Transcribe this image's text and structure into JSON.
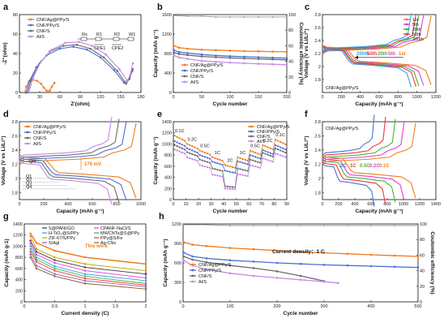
{
  "colors": {
    "ag": "#f07c1c",
    "ppy": "#4a6fd4",
    "cnf": "#6b6b6b",
    "al": "#c48ae8",
    "cyc1": "#f07c1c",
    "cyc5": "#e43bd2",
    "cyc20": "#43b43b",
    "cyc50": "#e83a3a",
    "cyc200": "#3aa0e6",
    "ce": "#8a8a8a"
  },
  "legend_common": [
    "CNF/Ag@PPy/S",
    "CNF/PPy/S",
    "CNF/S",
    "Al/S"
  ],
  "chart_data": [
    {
      "panel": "a",
      "type": "line",
      "xlabel": "Z'(ohm)",
      "ylabel": "-Z''(ohm)",
      "xlim": [
        0,
        180
      ],
      "ylim": [
        0,
        80
      ],
      "xticks": [
        0,
        30,
        60,
        90,
        120,
        150,
        180
      ],
      "yticks": [
        0,
        20,
        40,
        60,
        80
      ],
      "circuit_labels": [
        "Rs",
        "R1",
        "R2",
        "CPE1",
        "CPE2",
        "W1"
      ],
      "series": [
        {
          "name": "CNF/Ag@PPy/S",
          "color": "ag",
          "x": [
            8,
            10,
            14,
            20,
            26,
            32,
            36,
            40,
            43,
            45,
            48,
            52
          ],
          "y": [
            0,
            6,
            11,
            13,
            12,
            9,
            5,
            2,
            1,
            2,
            6,
            10
          ]
        },
        {
          "name": "CNF/PPy/S",
          "color": "ppy",
          "x": [
            10,
            15,
            25,
            40,
            60,
            80,
            100,
            120,
            140,
            155,
            162,
            167
          ],
          "y": [
            0,
            12,
            26,
            38,
            45,
            47,
            44,
            36,
            23,
            10,
            14,
            22
          ]
        },
        {
          "name": "CNF/S",
          "color": "cnf",
          "x": [
            12,
            18,
            30,
            45,
            65,
            85,
            105,
            125,
            145,
            158,
            163,
            168
          ],
          "y": [
            0,
            14,
            30,
            42,
            48,
            49,
            45,
            36,
            22,
            9,
            14,
            24
          ]
        },
        {
          "name": "Al/S",
          "color": "al",
          "x": [
            14,
            20,
            32,
            48,
            68,
            88,
            108,
            128,
            148,
            160,
            164,
            168
          ],
          "y": [
            0,
            15,
            32,
            44,
            51,
            52,
            48,
            39,
            24,
            12,
            18,
            30
          ]
        }
      ]
    },
    {
      "panel": "b",
      "type": "scatter",
      "xlabel": "Cycle number",
      "ylabel": "Capacity (mAh g⁻¹)",
      "ylabel_right": "Coulombic efficiency (%)",
      "xlim": [
        0,
        200
      ],
      "ylim": [
        0,
        1600
      ],
      "ylim_right": [
        0,
        100
      ],
      "xticks": [
        0,
        50,
        100,
        150,
        200
      ],
      "yticks": [
        0,
        400,
        800,
        1200,
        1600
      ],
      "yticks_right": [
        0,
        20,
        40,
        60,
        80,
        100
      ],
      "series": [
        {
          "name": "CNF/Ag@PPy/S",
          "color": "ag",
          "x": [
            1,
            10,
            25,
            50,
            75,
            100,
            125,
            150,
            175,
            200
          ],
          "y": [
            960,
            920,
            900,
            880,
            870,
            860,
            850,
            845,
            840,
            835
          ]
        },
        {
          "name": "CNF/PPy/S",
          "color": "ppy",
          "x": [
            1,
            10,
            25,
            50,
            75,
            100,
            125,
            150,
            175,
            200
          ],
          "y": [
            870,
            830,
            810,
            780,
            760,
            745,
            735,
            725,
            715,
            705
          ]
        },
        {
          "name": "CNF/S",
          "color": "cnf",
          "x": [
            1,
            10,
            25,
            50,
            75,
            100,
            125,
            150,
            175,
            200
          ],
          "y": [
            820,
            790,
            770,
            740,
            725,
            710,
            700,
            690,
            680,
            670
          ]
        },
        {
          "name": "Al/S",
          "color": "al",
          "x": [
            1,
            10,
            25,
            50,
            75,
            100,
            125,
            150,
            175,
            200
          ],
          "y": [
            760,
            720,
            690,
            650,
            630,
            615,
            600,
            590,
            580,
            570
          ]
        },
        {
          "name": "CE",
          "color": "ce",
          "axis": "right",
          "x": [
            1,
            25,
            50,
            75,
            100,
            125,
            150,
            175,
            200
          ],
          "y": [
            99,
            98,
            98,
            97,
            97,
            97,
            97,
            97,
            97
          ]
        }
      ]
    },
    {
      "panel": "c",
      "type": "line",
      "xlabel": "Capacity (mAh g⁻¹)",
      "ylabel": "Voltage (V vs Li/Li⁺)",
      "xlim": [
        0,
        1200
      ],
      "ylim": [
        1.6,
        2.8
      ],
      "xticks": [
        0,
        200,
        400,
        600,
        800,
        1000,
        1200
      ],
      "yticks": [
        1.8,
        2.0,
        2.2,
        2.4,
        2.6,
        2.8
      ],
      "annotation": "CNF/Ag@PPy/S",
      "legend": [
        "1st",
        "5th",
        "20th",
        "50th",
        "200th"
      ],
      "arrow_labels": [
        "200th",
        "50th",
        "20th",
        "5th",
        "1st"
      ],
      "series": [
        {
          "name": "1st",
          "color": "cyc1",
          "cap": 1150
        },
        {
          "name": "5th",
          "color": "cyc5",
          "cap": 1070
        },
        {
          "name": "20th",
          "color": "cyc20",
          "cap": 1020
        },
        {
          "name": "50th",
          "color": "cyc50",
          "cap": 990
        },
        {
          "name": "200th",
          "color": "cyc200",
          "cap": 940
        }
      ]
    },
    {
      "panel": "d",
      "type": "line",
      "xlabel": "Capacity (mAh g⁻¹)",
      "ylabel": "Voltage (V vs Li/Li⁺)",
      "xlim": [
        0,
        1000
      ],
      "ylim": [
        1.7,
        2.8
      ],
      "xticks": [
        0,
        200,
        400,
        600,
        800,
        1000
      ],
      "yticks": [
        1.8,
        2.0,
        2.2,
        2.4,
        2.6,
        2.8
      ],
      "annotation": "170 mV",
      "q_labels": [
        "Q1",
        "Q2",
        "Q3",
        "Q4"
      ],
      "q_h_labels": [
        "QH"
      ],
      "series": [
        {
          "name": "CNF/Ag@PPy/S",
          "color": "ag",
          "cap": 960
        },
        {
          "name": "CNF/PPy/S",
          "color": "ppy",
          "cap": 880
        },
        {
          "name": "CNF/S",
          "color": "cnf",
          "cap": 820
        },
        {
          "name": "Al/S",
          "color": "al",
          "cap": 760
        }
      ]
    },
    {
      "panel": "e",
      "type": "scatter",
      "xlabel": "Cycle number",
      "ylabel": "Capacity (mAh g⁻¹)",
      "xlim": [
        0,
        90
      ],
      "ylim": [
        0,
        1400
      ],
      "xticks": [
        0,
        10,
        20,
        30,
        40,
        50,
        60,
        70,
        80,
        90
      ],
      "yticks": [
        0,
        200,
        400,
        600,
        800,
        1000,
        1200,
        1400
      ],
      "rate_labels": [
        "0.1C",
        "0.2C",
        "0.5C",
        "1C",
        "2C",
        "1C",
        "0.5C",
        "0.2C",
        "0.1C"
      ],
      "rate_x": [
        5,
        15,
        25,
        35,
        45,
        55,
        65,
        75,
        85
      ],
      "series": [
        {
          "name": "CNF/Ag@PPy/S",
          "color": "ag",
          "values": [
            1150,
            1000,
            880,
            760,
            620,
            760,
            880,
            980,
            1080
          ]
        },
        {
          "name": "CNF/PPy/S",
          "color": "ppy",
          "values": [
            1050,
            920,
            800,
            680,
            520,
            690,
            800,
            890,
            980
          ]
        },
        {
          "name": "CNF/S",
          "color": "cnf",
          "values": [
            980,
            850,
            720,
            560,
            240,
            560,
            720,
            840,
            920
          ]
        },
        {
          "name": "Al/S",
          "color": "al",
          "values": [
            900,
            760,
            620,
            450,
            200,
            460,
            620,
            740,
            830
          ]
        }
      ]
    },
    {
      "panel": "f",
      "type": "line",
      "xlabel": "Capacity (mAh g⁻¹)",
      "ylabel": "Voltage (V vs Li/Li⁺)",
      "xlim": [
        0,
        1400
      ],
      "ylim": [
        1.7,
        2.8
      ],
      "xticks": [
        0,
        200,
        400,
        600,
        800,
        1000,
        1200,
        1400
      ],
      "yticks": [
        1.8,
        2.0,
        2.2,
        2.4,
        2.6,
        2.8
      ],
      "annotation": "CNF/Ag@PPy/S",
      "rate_tags": [
        "2C",
        "1C",
        "0.5C",
        "0.2C",
        "0.1C"
      ],
      "series": [
        {
          "name": "2C",
          "color": "ppy",
          "cap": 640
        },
        {
          "name": "1C",
          "color": "cyc50",
          "cap": 780
        },
        {
          "name": "0.5C",
          "color": "cyc20",
          "cap": 900
        },
        {
          "name": "0.2C",
          "color": "cyc5",
          "cap": 1010
        },
        {
          "name": "0.1C",
          "color": "cyc1",
          "cap": 1150
        }
      ]
    },
    {
      "panel": "g",
      "type": "line",
      "xlabel": "Current density (C)",
      "ylabel": "Capacity (mAh g-1)",
      "xlim": [
        0,
        2.0
      ],
      "ylim": [
        0,
        1400
      ],
      "xticks": [
        0.0,
        0.5,
        1.0,
        1.5,
        2.0
      ],
      "yticks": [
        0,
        200,
        400,
        600,
        800,
        1000,
        1200,
        1400
      ],
      "annotation": "This work",
      "series": [
        {
          "name": "S@PANI/GO",
          "color": "#3a3a3a",
          "x": [
            0.1,
            0.2,
            0.5,
            1.0,
            2.0
          ],
          "y": [
            1100,
            900,
            750,
            620,
            500
          ]
        },
        {
          "name": "CPANF-NaCl/S",
          "color": "#e43bd2",
          "x": [
            0.1,
            0.2,
            0.5,
            1.0,
            2.0
          ],
          "y": [
            1050,
            850,
            700,
            560,
            430
          ]
        },
        {
          "name": "H-TiO₂@S/PPy",
          "color": "#3aa0e6",
          "x": [
            0.1,
            0.2,
            0.5,
            1.0,
            2.0
          ],
          "y": [
            1000,
            800,
            640,
            500,
            380
          ]
        },
        {
          "name": "MWCNTs@S@PPy",
          "color": "#43b43b",
          "x": [
            0.1,
            0.2,
            0.5,
            1.0,
            2.0
          ],
          "y": [
            950,
            760,
            600,
            460,
            330
          ]
        },
        {
          "name": "ZIF-67/S/PPy",
          "color": "#c4a000",
          "x": [
            0.1,
            0.2,
            0.5,
            1.0,
            2.0
          ],
          "y": [
            1180,
            950,
            800,
            680,
            560
          ]
        },
        {
          "name": "PPy@S/Fe",
          "color": "#e83a3a",
          "x": [
            0.1,
            0.2,
            0.5,
            1.0,
            2.0
          ],
          "y": [
            900,
            720,
            560,
            420,
            300
          ]
        },
        {
          "name": "S/AgI",
          "color": "#9b59b6",
          "x": [
            0.1,
            0.2,
            0.5,
            1.0,
            2.0
          ],
          "y": [
            850,
            650,
            500,
            380,
            270
          ]
        },
        {
          "name": "Ag-CNx",
          "color": "#8a5a2b",
          "x": [
            0.1,
            0.2,
            0.5,
            1.0,
            2.0
          ],
          "y": [
            800,
            600,
            460,
            330,
            230
          ]
        },
        {
          "name": "This work",
          "color": "#f07c1c",
          "x": [
            0.1,
            0.2,
            0.5,
            1.0,
            2.0
          ],
          "y": [
            1230,
            1060,
            920,
            800,
            680
          ]
        }
      ]
    },
    {
      "panel": "h",
      "type": "scatter",
      "xlabel": "Cycle number",
      "ylabel": "Capacity (mAh g⁻¹)",
      "ylabel_right": "Coulombic efficiency (%)",
      "xlim": [
        0,
        500
      ],
      "ylim": [
        0,
        1200
      ],
      "ylim_right": [
        0,
        100
      ],
      "xticks": [
        0,
        100,
        200,
        300,
        400,
        500
      ],
      "yticks": [
        0,
        300,
        600,
        900,
        1200
      ],
      "yticks_right": [
        0,
        20,
        40,
        60,
        80,
        100
      ],
      "annotation": "Current density：1 C",
      "series": [
        {
          "name": "CNF/Ag@PPy/S",
          "color": "ag",
          "x": [
            1,
            20,
            50,
            100,
            150,
            200,
            250,
            300,
            350,
            400,
            450,
            500
          ],
          "y": [
            920,
            880,
            860,
            830,
            810,
            790,
            770,
            755,
            740,
            725,
            712,
            700
          ]
        },
        {
          "name": "CNF/PPy/S",
          "color": "ppy",
          "x": [
            1,
            20,
            50,
            100,
            150,
            200,
            250,
            300,
            350,
            400,
            450,
            500
          ],
          "y": [
            760,
            700,
            670,
            640,
            620,
            600,
            585,
            570,
            560,
            550,
            540,
            530
          ]
        },
        {
          "name": "CNF/S",
          "color": "cnf",
          "x": [
            1,
            20,
            50,
            100,
            150,
            200,
            250,
            300
          ],
          "y": [
            700,
            650,
            610,
            560,
            520,
            470,
            400,
            320
          ]
        },
        {
          "name": "Al/S",
          "color": "al",
          "x": [
            1,
            20,
            50,
            100,
            150,
            200,
            250,
            300,
            330
          ],
          "y": [
            640,
            560,
            500,
            440,
            400,
            370,
            340,
            310,
            290
          ]
        },
        {
          "name": "CE",
          "color": "ce",
          "axis": "right",
          "x": [
            1,
            50,
            100,
            150,
            200,
            250,
            300,
            350,
            400,
            450,
            500
          ],
          "y": [
            99,
            99,
            98,
            98,
            98,
            98,
            98,
            98,
            98,
            98,
            98
          ]
        }
      ]
    }
  ]
}
